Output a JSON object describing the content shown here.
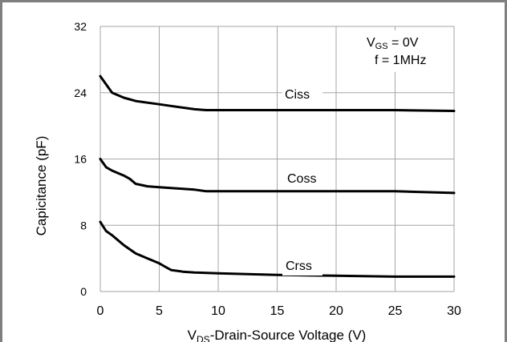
{
  "chart_data": {
    "type": "line",
    "xlabel": "V",
    "xlabel_sub": "DS",
    "xlabel_rest": "-Drain-Source Voltage (V)",
    "ylabel": "Capicitance (pF)",
    "xlim": [
      0,
      30
    ],
    "ylim": [
      0,
      32
    ],
    "xticks": [
      0,
      5,
      10,
      15,
      20,
      25,
      30
    ],
    "yticks": [
      0,
      8,
      16,
      24,
      32
    ],
    "grid": true,
    "annotations": {
      "vgs_main": "V",
      "vgs_sub": "GS",
      "vgs_rest": " = 0V",
      "freq": "f = 1MHz"
    },
    "series": [
      {
        "name": "Ciss",
        "x": [
          0,
          0.5,
          1,
          2,
          3,
          4,
          5,
          6,
          7,
          8,
          9,
          10,
          12,
          15,
          20,
          25,
          30
        ],
        "y": [
          26,
          25,
          24,
          23.4,
          23,
          22.8,
          22.6,
          22.4,
          22.2,
          22,
          21.9,
          21.9,
          21.9,
          21.9,
          21.9,
          21.9,
          21.8
        ]
      },
      {
        "name": "Coss",
        "x": [
          0,
          0.5,
          1,
          2,
          2.5,
          3,
          4,
          5,
          6,
          7,
          8,
          9,
          10,
          15,
          20,
          25,
          30
        ],
        "y": [
          16,
          15,
          14.6,
          14,
          13.6,
          13,
          12.7,
          12.6,
          12.5,
          12.4,
          12.3,
          12.1,
          12.1,
          12.1,
          12.1,
          12.1,
          11.9
        ]
      },
      {
        "name": "Crss",
        "x": [
          0,
          0.5,
          1,
          2,
          3,
          4,
          5,
          5.5,
          6,
          7,
          8,
          10,
          15,
          20,
          25,
          30
        ],
        "y": [
          8.4,
          7.3,
          6.8,
          5.6,
          4.6,
          4,
          3.4,
          3,
          2.6,
          2.4,
          2.3,
          2.2,
          2,
          1.9,
          1.8,
          1.8
        ]
      }
    ]
  }
}
